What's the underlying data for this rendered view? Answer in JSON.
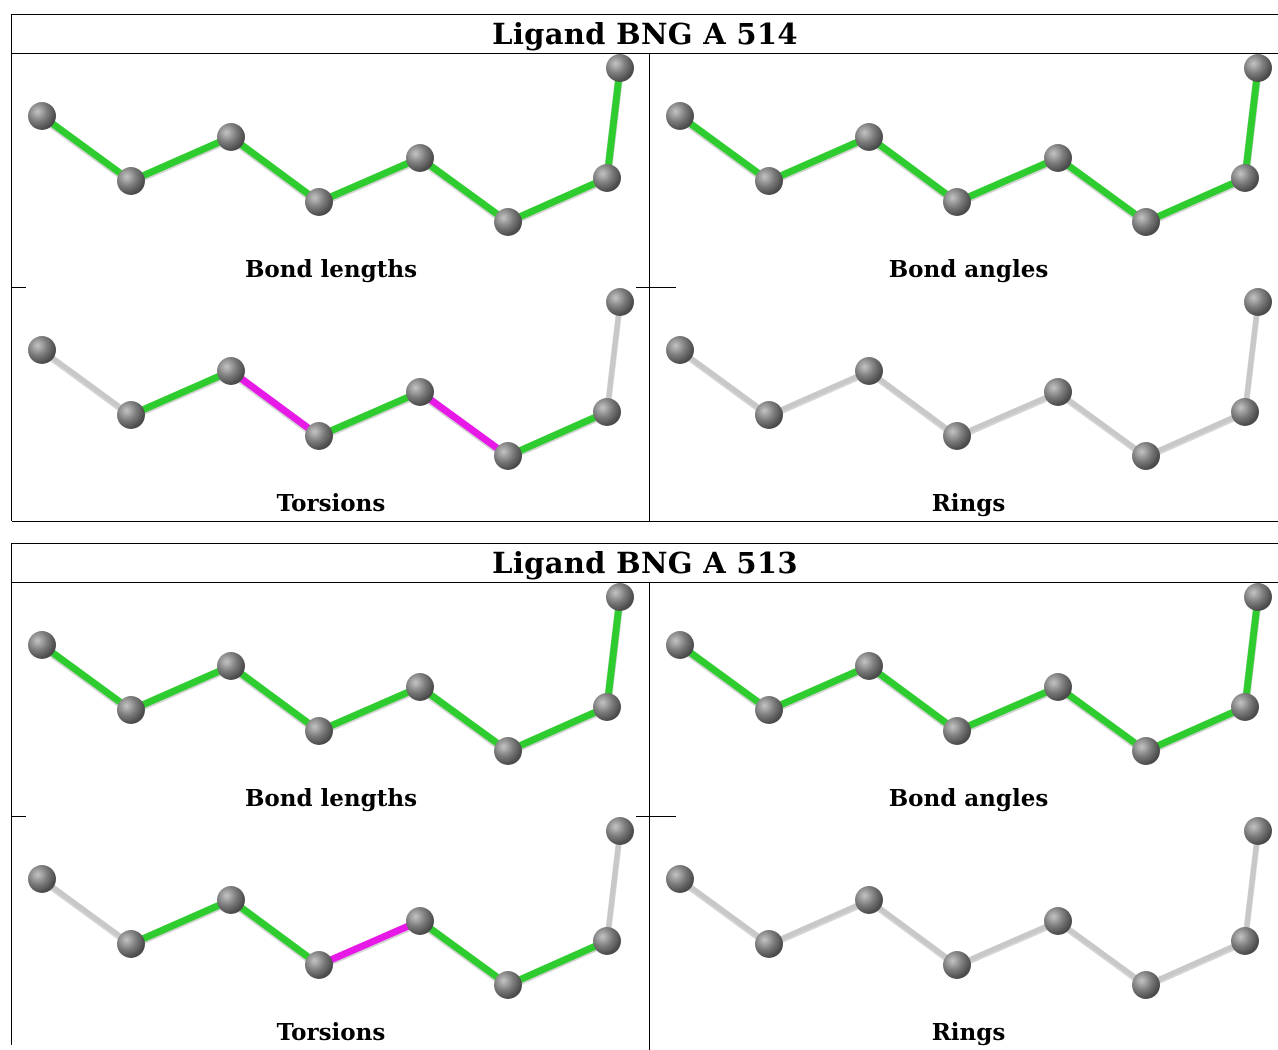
{
  "colors": {
    "ok": "#2ecc2e",
    "outlier": "#e619e6",
    "na": "#c8c8c8",
    "atom": "#7a7a7a"
  },
  "blocks": [
    {
      "title": "Ligand BNG A 514",
      "panels": [
        {
          "caption": "Bond lengths",
          "bond_status": [
            "ok",
            "ok",
            "ok",
            "ok",
            "ok",
            "ok",
            "ok",
            "ok"
          ]
        },
        {
          "caption": "Bond angles",
          "bond_status": [
            "ok",
            "ok",
            "ok",
            "ok",
            "ok",
            "ok",
            "ok",
            "ok"
          ]
        },
        {
          "caption": "Torsions",
          "bond_status": [
            "na",
            "ok",
            "outlier",
            "ok",
            "outlier",
            "ok",
            "na",
            "na"
          ]
        },
        {
          "caption": "Rings",
          "bond_status": [
            "na",
            "na",
            "na",
            "na",
            "na",
            "na",
            "na",
            "na"
          ]
        }
      ]
    },
    {
      "title": "Ligand BNG A 513",
      "panels": [
        {
          "caption": "Bond lengths",
          "bond_status": [
            "ok",
            "ok",
            "ok",
            "ok",
            "ok",
            "ok",
            "ok",
            "ok"
          ]
        },
        {
          "caption": "Bond angles",
          "bond_status": [
            "ok",
            "ok",
            "ok",
            "ok",
            "ok",
            "ok",
            "ok",
            "ok"
          ]
        },
        {
          "caption": "Torsions",
          "bond_status": [
            "na",
            "ok",
            "ok",
            "outlier",
            "ok",
            "ok",
            "na",
            "na"
          ]
        },
        {
          "caption": "Rings",
          "bond_status": [
            "na",
            "na",
            "na",
            "na",
            "na",
            "na",
            "na",
            "na"
          ]
        }
      ]
    }
  ]
}
